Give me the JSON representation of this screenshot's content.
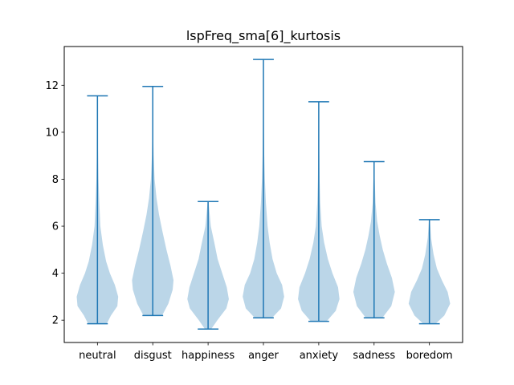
{
  "chart_data": {
    "type": "violin",
    "title": "lspFreq_sma[6]_kurtosis",
    "xlabel": "",
    "ylabel": "",
    "categories": [
      "neutral",
      "disgust",
      "happiness",
      "anger",
      "anxiety",
      "sadness",
      "boredom"
    ],
    "yticks": [
      2,
      4,
      6,
      8,
      10,
      12
    ],
    "ylim": [
      1.05,
      13.65
    ],
    "grid": false,
    "violins": [
      {
        "category": "neutral",
        "min": 1.85,
        "max": 11.55,
        "shape": [
          [
            1.85,
            0.45
          ],
          [
            2.2,
            0.65
          ],
          [
            2.6,
            0.96
          ],
          [
            3.0,
            1.0
          ],
          [
            3.5,
            0.84
          ],
          [
            4.0,
            0.6
          ],
          [
            4.5,
            0.42
          ],
          [
            5.2,
            0.26
          ],
          [
            6.0,
            0.14
          ],
          [
            7.0,
            0.09
          ],
          [
            8.0,
            0.05
          ],
          [
            9.0,
            0.03
          ],
          [
            10.0,
            0.015
          ],
          [
            11.55,
            0.01
          ]
        ]
      },
      {
        "category": "disgust",
        "min": 2.2,
        "max": 11.95,
        "shape": [
          [
            2.2,
            0.45
          ],
          [
            2.7,
            0.75
          ],
          [
            3.3,
            0.96
          ],
          [
            3.7,
            1.0
          ],
          [
            4.3,
            0.86
          ],
          [
            5.0,
            0.66
          ],
          [
            5.8,
            0.46
          ],
          [
            6.5,
            0.3
          ],
          [
            7.2,
            0.18
          ],
          [
            8.0,
            0.09
          ],
          [
            9.0,
            0.04
          ],
          [
            10.0,
            0.02
          ],
          [
            11.95,
            0.01
          ]
        ]
      },
      {
        "category": "happiness",
        "min": 1.62,
        "max": 7.05,
        "shape": [
          [
            1.62,
            0.15
          ],
          [
            2.0,
            0.45
          ],
          [
            2.5,
            0.88
          ],
          [
            2.9,
            1.0
          ],
          [
            3.4,
            0.9
          ],
          [
            4.0,
            0.68
          ],
          [
            4.6,
            0.46
          ],
          [
            5.3,
            0.3
          ],
          [
            6.0,
            0.13
          ],
          [
            7.05,
            0.02
          ]
        ]
      },
      {
        "category": "anger",
        "min": 2.1,
        "max": 13.1,
        "shape": [
          [
            2.1,
            0.42
          ],
          [
            2.5,
            0.85
          ],
          [
            3.0,
            1.0
          ],
          [
            3.5,
            0.9
          ],
          [
            4.0,
            0.64
          ],
          [
            4.6,
            0.44
          ],
          [
            5.3,
            0.3
          ],
          [
            6.0,
            0.2
          ],
          [
            7.0,
            0.12
          ],
          [
            8.0,
            0.07
          ],
          [
            9.0,
            0.04
          ],
          [
            10.0,
            0.025
          ],
          [
            11.5,
            0.015
          ],
          [
            13.1,
            0.01
          ]
        ]
      },
      {
        "category": "anxiety",
        "min": 1.95,
        "max": 11.3,
        "shape": [
          [
            1.95,
            0.38
          ],
          [
            2.4,
            0.82
          ],
          [
            2.9,
            1.0
          ],
          [
            3.4,
            0.93
          ],
          [
            4.0,
            0.66
          ],
          [
            4.6,
            0.44
          ],
          [
            5.3,
            0.26
          ],
          [
            6.0,
            0.14
          ],
          [
            7.0,
            0.07
          ],
          [
            8.0,
            0.04
          ],
          [
            9.5,
            0.02
          ],
          [
            11.3,
            0.01
          ]
        ]
      },
      {
        "category": "sadness",
        "min": 2.1,
        "max": 8.75,
        "shape": [
          [
            2.1,
            0.4
          ],
          [
            2.6,
            0.83
          ],
          [
            3.2,
            1.0
          ],
          [
            3.8,
            0.86
          ],
          [
            4.4,
            0.62
          ],
          [
            5.0,
            0.42
          ],
          [
            5.6,
            0.27
          ],
          [
            6.2,
            0.15
          ],
          [
            7.0,
            0.07
          ],
          [
            8.0,
            0.03
          ],
          [
            8.75,
            0.01
          ]
        ]
      },
      {
        "category": "boredom",
        "min": 1.85,
        "max": 6.28,
        "shape": [
          [
            1.85,
            0.3
          ],
          [
            2.2,
            0.72
          ],
          [
            2.7,
            1.0
          ],
          [
            3.2,
            0.88
          ],
          [
            3.7,
            0.6
          ],
          [
            4.2,
            0.36
          ],
          [
            4.8,
            0.2
          ],
          [
            5.5,
            0.08
          ],
          [
            6.28,
            0.02
          ]
        ]
      }
    ]
  },
  "colors": {
    "violin_fill": "#1f77b4",
    "line": "#1f77b4",
    "axis": "#000000"
  }
}
